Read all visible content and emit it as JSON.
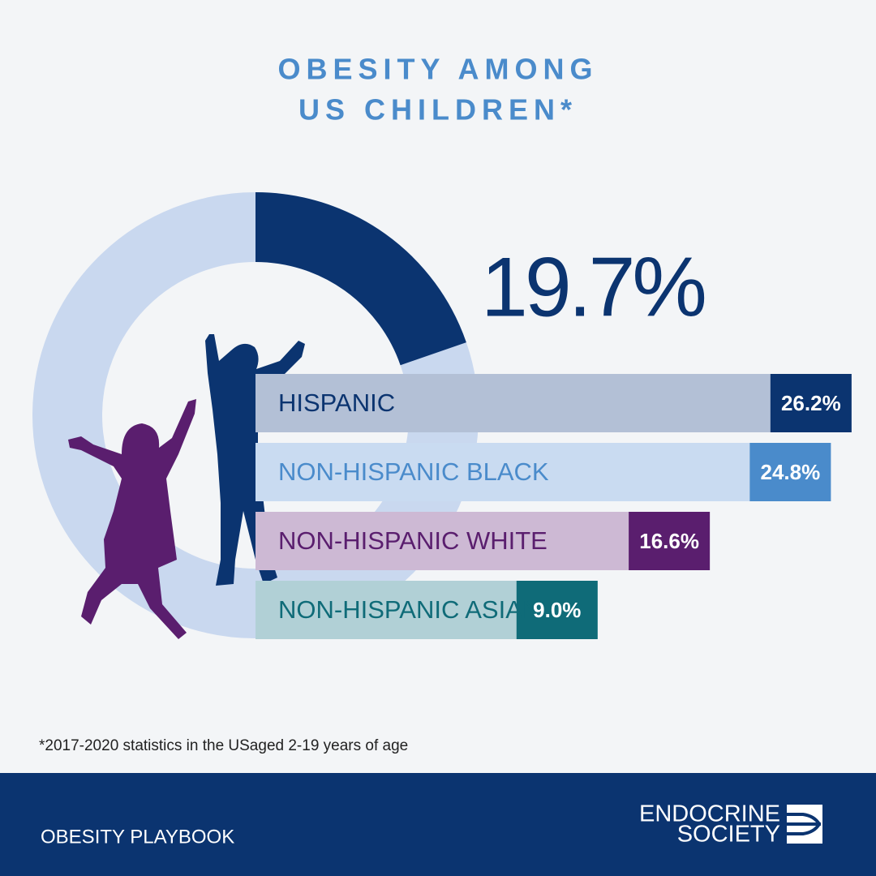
{
  "title": [
    "OBESITY AMONG",
    "US CHILDREN*"
  ],
  "footnote": "*2017-2020 statistics in the USaged 2-19 years of age",
  "footer": "OBESITY PLAYBOOK",
  "logo": [
    "ENDOCRINE",
    "SOCIETY"
  ],
  "chart_data": [
    {
      "type": "donut",
      "value": 19.7,
      "value_label": "19.7%",
      "color": "#0b3470",
      "track_color": "#c9d8ef"
    },
    {
      "type": "hbar",
      "categories": [
        "HISPANIC",
        "NON-HISPANIC BLACK",
        "NON-HISPANIC WHITE",
        "NON-HISPANIC ASIAN"
      ],
      "values": [
        26.2,
        24.8,
        16.6,
        9.0
      ],
      "value_labels": [
        "26.2%",
        "24.8%",
        "16.6%",
        "9.0%"
      ],
      "bar_colors": [
        "#b3c0d6",
        "#c9dbf1",
        "#cdb9d4",
        "#b1d0d6"
      ],
      "value_colors": [
        "#0b3470",
        "#4a8bcb",
        "#5a1e6e",
        "#0f6b78"
      ]
    }
  ]
}
